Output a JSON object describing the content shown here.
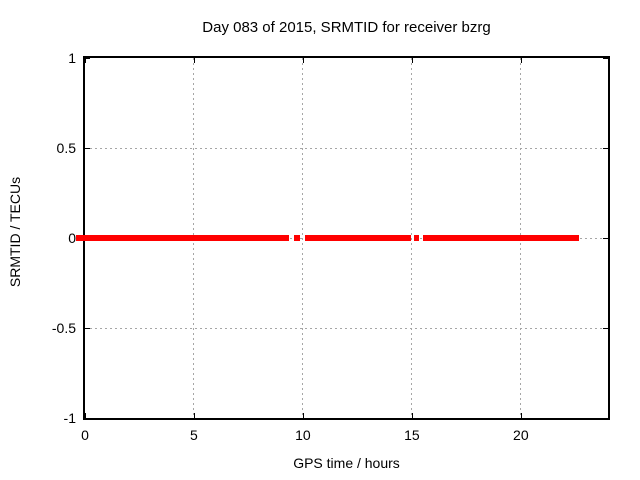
{
  "chart_data": {
    "type": "scatter",
    "title": "Day 083 of 2015, SRMTID for receiver bzrg",
    "xlabel": "GPS time / hours",
    "ylabel": "SRMTID / TECUs",
    "xlim": [
      0,
      24
    ],
    "ylim": [
      -1,
      1
    ],
    "xticks": [
      0,
      5,
      10,
      15,
      20
    ],
    "yticks": [
      1,
      0.5,
      0,
      -0.5,
      -1
    ],
    "grid": true,
    "legend": "none",
    "series": [
      {
        "name": "SRMTID",
        "color": "#ff0000",
        "y_value": 0,
        "band_thickness_px": 6,
        "segments_hours": [
          {
            "start": -0.4,
            "end": 9.35
          },
          {
            "start": 9.6,
            "end": 9.85
          },
          {
            "start": 10.1,
            "end": 14.95
          },
          {
            "start": 15.1,
            "end": 15.35
          },
          {
            "start": 15.5,
            "end": 22.65
          }
        ]
      }
    ]
  },
  "colors": {
    "series": "#ff0000",
    "grid": "#a6a6a6",
    "axis": "#000000",
    "background": "#ffffff",
    "text": "#000000"
  }
}
